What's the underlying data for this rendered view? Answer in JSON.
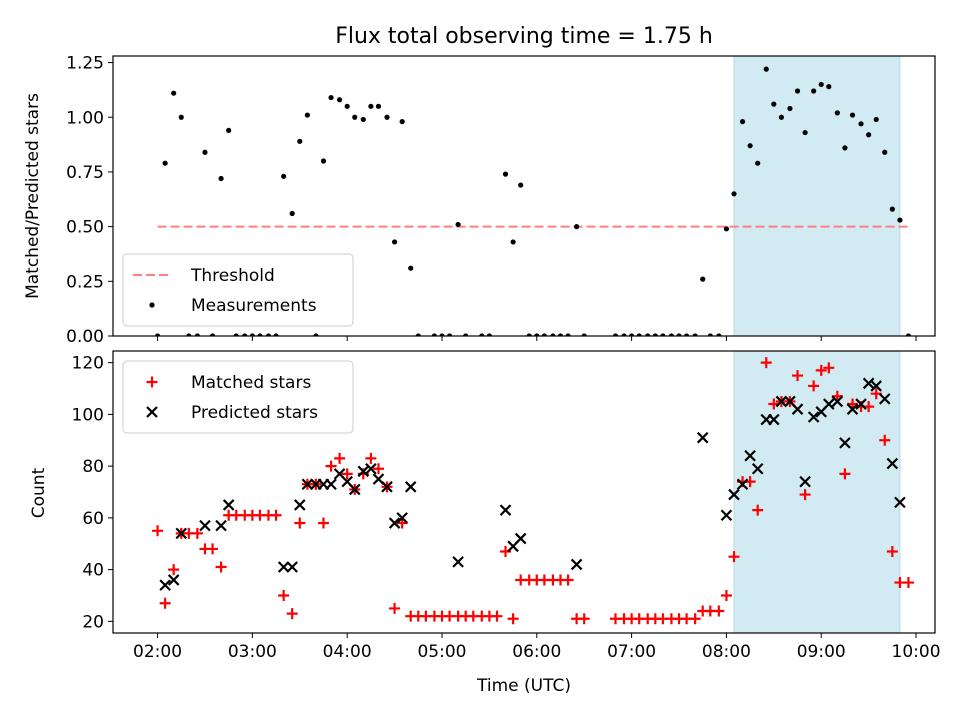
{
  "chart_data": [
    {
      "type": "scatter",
      "title": "Flux total observing time = 1.75 h",
      "xlabel": "",
      "ylabel": "Matched/Predicted stars",
      "xlim": [
        1.53,
        10.2
      ],
      "ylim": [
        0,
        1.28
      ],
      "x_tick_labels": [
        "02:00",
        "03:00",
        "04:00",
        "05:00",
        "06:00",
        "07:00",
        "08:00",
        "09:00",
        "10:00"
      ],
      "yticks": [
        0.0,
        0.25,
        0.5,
        0.75,
        1.0,
        1.25
      ],
      "y_tick_labels": [
        "0.00",
        "0.25",
        "0.50",
        "0.75",
        "1.00",
        "1.25"
      ],
      "legend_position": "lower-left",
      "shaded_span": {
        "x": [
          8.08,
          9.83
        ],
        "color": "#add8e6"
      },
      "threshold": {
        "name": "Threshold",
        "y": 0.5,
        "x": [
          2.0,
          9.92
        ],
        "color": "#ff7f7f",
        "style": "dashed"
      },
      "series": [
        {
          "name": "Measurements",
          "color": "#000000",
          "marker": "dot",
          "points": [
            [
              2.0,
              0
            ],
            [
              2.08,
              0.79
            ],
            [
              2.17,
              1.11
            ],
            [
              2.25,
              1.0
            ],
            [
              2.33,
              0
            ],
            [
              2.42,
              0
            ],
            [
              2.5,
              0.84
            ],
            [
              2.58,
              0
            ],
            [
              2.67,
              0.72
            ],
            [
              2.75,
              0.94
            ],
            [
              2.83,
              0
            ],
            [
              2.92,
              0
            ],
            [
              3.0,
              0
            ],
            [
              3.08,
              0
            ],
            [
              3.17,
              0
            ],
            [
              3.25,
              0
            ],
            [
              3.33,
              0.73
            ],
            [
              3.42,
              0.56
            ],
            [
              3.5,
              0.89
            ],
            [
              3.58,
              1.01
            ],
            [
              3.67,
              0
            ],
            [
              3.75,
              0.8
            ],
            [
              3.83,
              1.09
            ],
            [
              3.92,
              1.08
            ],
            [
              4.0,
              1.05
            ],
            [
              4.08,
              1.0
            ],
            [
              4.17,
              0.99
            ],
            [
              4.25,
              1.05
            ],
            [
              4.33,
              1.05
            ],
            [
              4.42,
              1.0
            ],
            [
              4.5,
              0.43
            ],
            [
              4.58,
              0.98
            ],
            [
              4.67,
              0.31
            ],
            [
              4.75,
              0
            ],
            [
              4.92,
              0
            ],
            [
              5.0,
              0
            ],
            [
              5.08,
              0
            ],
            [
              5.17,
              0.51
            ],
            [
              5.25,
              0
            ],
            [
              5.42,
              0
            ],
            [
              5.5,
              0
            ],
            [
              5.67,
              0.74
            ],
            [
              5.75,
              0.43
            ],
            [
              5.83,
              0.69
            ],
            [
              5.92,
              0
            ],
            [
              6.0,
              0
            ],
            [
              6.08,
              0
            ],
            [
              6.17,
              0
            ],
            [
              6.25,
              0
            ],
            [
              6.33,
              0
            ],
            [
              6.42,
              0.5
            ],
            [
              6.5,
              0
            ],
            [
              6.83,
              0
            ],
            [
              6.92,
              0
            ],
            [
              7.0,
              0
            ],
            [
              7.08,
              0
            ],
            [
              7.17,
              0
            ],
            [
              7.25,
              0
            ],
            [
              7.33,
              0
            ],
            [
              7.42,
              0
            ],
            [
              7.5,
              0
            ],
            [
              7.58,
              0
            ],
            [
              7.67,
              0
            ],
            [
              7.75,
              0.26
            ],
            [
              7.83,
              0
            ],
            [
              7.92,
              0
            ],
            [
              8.0,
              0.49
            ],
            [
              8.08,
              0.65
            ],
            [
              8.17,
              0.98
            ],
            [
              8.25,
              0.87
            ],
            [
              8.33,
              0.79
            ],
            [
              8.42,
              1.22
            ],
            [
              8.5,
              1.06
            ],
            [
              8.58,
              1.0
            ],
            [
              8.67,
              1.04
            ],
            [
              8.75,
              1.12
            ],
            [
              8.83,
              0.93
            ],
            [
              8.92,
              1.12
            ],
            [
              9.0,
              1.15
            ],
            [
              9.08,
              1.14
            ],
            [
              9.17,
              1.02
            ],
            [
              9.25,
              0.86
            ],
            [
              9.33,
              1.01
            ],
            [
              9.42,
              0.97
            ],
            [
              9.5,
              0.92
            ],
            [
              9.58,
              0.99
            ],
            [
              9.67,
              0.84
            ],
            [
              9.75,
              0.58
            ],
            [
              9.83,
              0.53
            ],
            [
              9.92,
              0
            ]
          ]
        }
      ]
    },
    {
      "type": "scatter",
      "title": "",
      "xlabel": "Time (UTC)",
      "ylabel": "Count",
      "xlim": [
        1.53,
        10.2
      ],
      "ylim": [
        15.5,
        124.5
      ],
      "x_tick_labels": [
        "02:00",
        "03:00",
        "04:00",
        "05:00",
        "06:00",
        "07:00",
        "08:00",
        "09:00",
        "10:00"
      ],
      "yticks": [
        20,
        40,
        60,
        80,
        100,
        120
      ],
      "y_tick_labels": [
        "20",
        "40",
        "60",
        "80",
        "100",
        "120"
      ],
      "legend_position": "upper-left",
      "shaded_span": {
        "x": [
          8.08,
          9.83
        ],
        "color": "#add8e6"
      },
      "series": [
        {
          "name": "Matched stars",
          "color": "#ff0000",
          "marker": "plus",
          "points": [
            [
              2.0,
              55
            ],
            [
              2.08,
              27
            ],
            [
              2.17,
              40
            ],
            [
              2.25,
              54
            ],
            [
              2.33,
              54
            ],
            [
              2.42,
              54
            ],
            [
              2.5,
              48
            ],
            [
              2.58,
              48
            ],
            [
              2.67,
              41
            ],
            [
              2.75,
              61
            ],
            [
              2.83,
              61
            ],
            [
              2.92,
              61
            ],
            [
              3.0,
              61
            ],
            [
              3.08,
              61
            ],
            [
              3.17,
              61
            ],
            [
              3.25,
              61
            ],
            [
              3.33,
              30
            ],
            [
              3.42,
              23
            ],
            [
              3.5,
              58
            ],
            [
              3.58,
              73
            ],
            [
              3.67,
              73
            ],
            [
              3.75,
              58
            ],
            [
              3.83,
              80
            ],
            [
              3.92,
              83
            ],
            [
              4.0,
              77
            ],
            [
              4.08,
              71
            ],
            [
              4.17,
              77
            ],
            [
              4.25,
              83
            ],
            [
              4.33,
              79
            ],
            [
              4.42,
              72
            ],
            [
              4.5,
              25
            ],
            [
              4.58,
              58
            ],
            [
              4.67,
              22
            ],
            [
              4.75,
              22
            ],
            [
              4.83,
              22
            ],
            [
              4.92,
              22
            ],
            [
              5.0,
              22
            ],
            [
              5.08,
              22
            ],
            [
              5.17,
              22
            ],
            [
              5.25,
              22
            ],
            [
              5.33,
              22
            ],
            [
              5.42,
              22
            ],
            [
              5.5,
              22
            ],
            [
              5.58,
              22
            ],
            [
              5.67,
              47
            ],
            [
              5.75,
              21
            ],
            [
              5.83,
              36
            ],
            [
              5.92,
              36
            ],
            [
              6.0,
              36
            ],
            [
              6.08,
              36
            ],
            [
              6.17,
              36
            ],
            [
              6.25,
              36
            ],
            [
              6.33,
              36
            ],
            [
              6.42,
              21
            ],
            [
              6.5,
              21
            ],
            [
              6.83,
              21
            ],
            [
              6.92,
              21
            ],
            [
              7.0,
              21
            ],
            [
              7.08,
              21
            ],
            [
              7.17,
              21
            ],
            [
              7.25,
              21
            ],
            [
              7.33,
              21
            ],
            [
              7.42,
              21
            ],
            [
              7.5,
              21
            ],
            [
              7.58,
              21
            ],
            [
              7.67,
              21
            ],
            [
              7.75,
              24
            ],
            [
              7.83,
              24
            ],
            [
              7.92,
              24
            ],
            [
              8.0,
              30
            ],
            [
              8.08,
              45
            ],
            [
              8.17,
              74
            ],
            [
              8.25,
              74
            ],
            [
              8.33,
              63
            ],
            [
              8.42,
              120
            ],
            [
              8.5,
              104
            ],
            [
              8.58,
              105
            ],
            [
              8.67,
              105
            ],
            [
              8.75,
              115
            ],
            [
              8.83,
              69
            ],
            [
              8.92,
              111
            ],
            [
              9.0,
              117
            ],
            [
              9.08,
              118
            ],
            [
              9.17,
              107
            ],
            [
              9.25,
              77
            ],
            [
              9.33,
              104
            ],
            [
              9.42,
              103
            ],
            [
              9.5,
              103
            ],
            [
              9.58,
              108
            ],
            [
              9.67,
              90
            ],
            [
              9.75,
              47
            ],
            [
              9.83,
              35
            ],
            [
              9.92,
              35
            ]
          ]
        },
        {
          "name": "Predicted stars",
          "color": "#000000",
          "marker": "x",
          "points": [
            [
              2.08,
              34
            ],
            [
              2.17,
              36
            ],
            [
              2.25,
              54
            ],
            [
              2.5,
              57
            ],
            [
              2.67,
              57
            ],
            [
              2.75,
              65
            ],
            [
              3.33,
              41
            ],
            [
              3.42,
              41
            ],
            [
              3.5,
              65
            ],
            [
              3.58,
              73
            ],
            [
              3.67,
              73
            ],
            [
              3.75,
              73
            ],
            [
              3.83,
              73
            ],
            [
              3.92,
              77
            ],
            [
              4.0,
              74
            ],
            [
              4.08,
              71
            ],
            [
              4.17,
              78
            ],
            [
              4.25,
              79
            ],
            [
              4.33,
              75
            ],
            [
              4.42,
              72
            ],
            [
              4.5,
              58
            ],
            [
              4.58,
              60
            ],
            [
              4.67,
              72
            ],
            [
              5.17,
              43
            ],
            [
              5.67,
              63
            ],
            [
              5.75,
              49
            ],
            [
              5.83,
              52
            ],
            [
              6.42,
              42
            ],
            [
              7.75,
              91
            ],
            [
              8.0,
              61
            ],
            [
              8.08,
              69
            ],
            [
              8.17,
              73
            ],
            [
              8.25,
              84
            ],
            [
              8.33,
              79
            ],
            [
              8.42,
              98
            ],
            [
              8.5,
              98
            ],
            [
              8.58,
              105
            ],
            [
              8.67,
              105
            ],
            [
              8.75,
              102
            ],
            [
              8.83,
              74
            ],
            [
              8.92,
              99
            ],
            [
              9.0,
              101
            ],
            [
              9.08,
              104
            ],
            [
              9.17,
              105
            ],
            [
              9.25,
              89
            ],
            [
              9.33,
              102
            ],
            [
              9.42,
              104
            ],
            [
              9.5,
              112
            ],
            [
              9.58,
              111
            ],
            [
              9.67,
              106
            ],
            [
              9.75,
              81
            ],
            [
              9.83,
              66
            ]
          ]
        }
      ]
    }
  ]
}
